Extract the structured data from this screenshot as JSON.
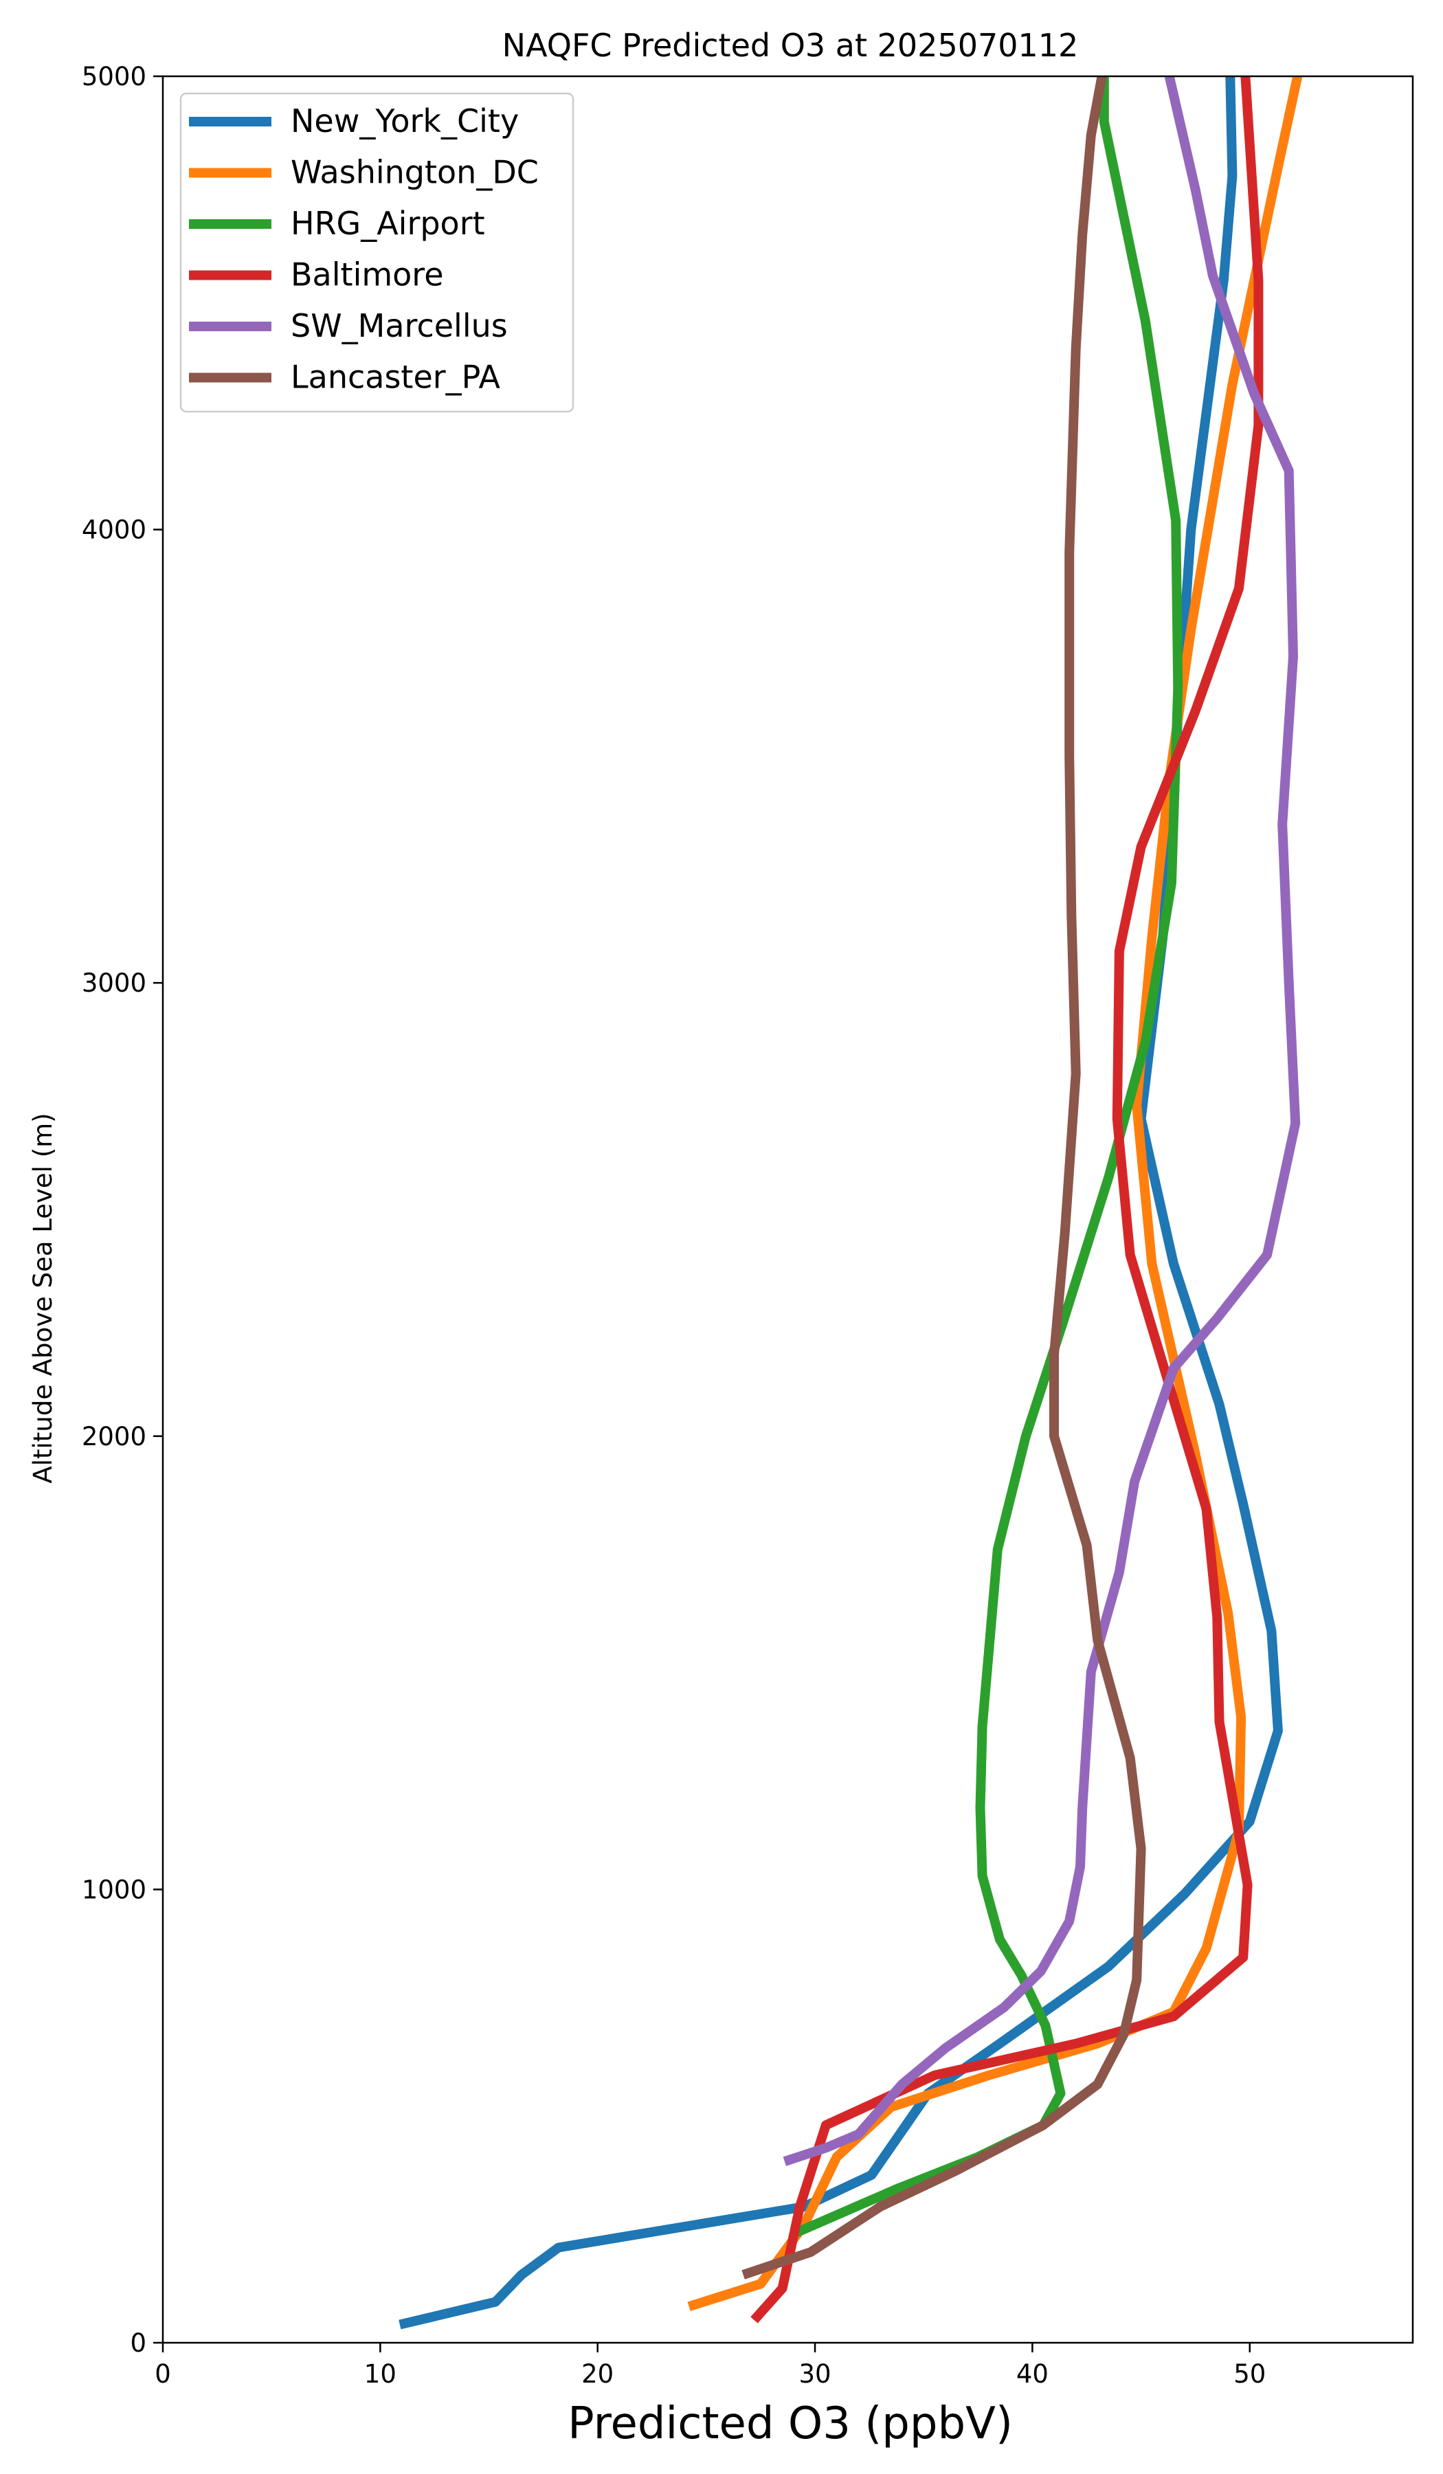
{
  "chart_data": {
    "type": "line",
    "title": "NAQFC Predicted O3 at 2025070112",
    "xlabel": "Predicted O3 (ppbV)",
    "ylabel": "Altitude Above Sea Level (m)",
    "xlim": [
      0,
      57.5
    ],
    "ylim": [
      0,
      5000
    ],
    "xticks": [
      0,
      10,
      20,
      30,
      40,
      50
    ],
    "yticks": [
      0,
      1000,
      2000,
      3000,
      4000,
      5000
    ],
    "legend_position": "top-left",
    "grid": false,
    "series": [
      {
        "name": "New_York_City",
        "color": "#1f77b4",
        "points": [
          [
            10.9,
            40
          ],
          [
            15.3,
            90
          ],
          [
            16.5,
            150
          ],
          [
            18.2,
            210
          ],
          [
            29.5,
            300
          ],
          [
            32.6,
            370
          ],
          [
            35.2,
            550
          ],
          [
            38.5,
            660
          ],
          [
            43.5,
            830
          ],
          [
            47.0,
            990
          ],
          [
            50.0,
            1150
          ],
          [
            51.3,
            1350
          ],
          [
            51.0,
            1570
          ],
          [
            49.7,
            1850
          ],
          [
            48.6,
            2070
          ],
          [
            46.5,
            2380
          ],
          [
            45.0,
            2700
          ],
          [
            46.0,
            3100
          ],
          [
            47.3,
            4000
          ],
          [
            48.8,
            4550
          ],
          [
            49.2,
            4780
          ],
          [
            49.1,
            5000
          ]
        ]
      },
      {
        "name": "Washington_DC",
        "color": "#ff7f0e",
        "points": [
          [
            24.2,
            80
          ],
          [
            27.5,
            130
          ],
          [
            29.5,
            260
          ],
          [
            31.0,
            410
          ],
          [
            33.5,
            520
          ],
          [
            38.0,
            590
          ],
          [
            43.0,
            660
          ],
          [
            46.5,
            730
          ],
          [
            48.0,
            870
          ],
          [
            49.5,
            1130
          ],
          [
            49.6,
            1380
          ],
          [
            49.0,
            1610
          ],
          [
            47.5,
            1960
          ],
          [
            45.5,
            2380
          ],
          [
            44.8,
            2730
          ],
          [
            45.5,
            3100
          ],
          [
            46.3,
            3450
          ],
          [
            47.3,
            3780
          ],
          [
            49.2,
            4320
          ],
          [
            51.3,
            4800
          ],
          [
            52.2,
            5000
          ]
        ]
      },
      {
        "name": "HRG_Airport",
        "color": "#2ca02c",
        "points": [
          [
            29.0,
            240
          ],
          [
            33.8,
            340
          ],
          [
            37.5,
            410
          ],
          [
            40.5,
            480
          ],
          [
            41.3,
            550
          ],
          [
            40.6,
            700
          ],
          [
            39.5,
            810
          ],
          [
            38.5,
            890
          ],
          [
            37.7,
            1030
          ],
          [
            37.6,
            1180
          ],
          [
            37.7,
            1360
          ],
          [
            38.4,
            1750
          ],
          [
            39.7,
            2000
          ],
          [
            41.4,
            2250
          ],
          [
            43.5,
            2570
          ],
          [
            45.2,
            2870
          ],
          [
            46.4,
            3220
          ],
          [
            46.7,
            3650
          ],
          [
            46.6,
            4020
          ],
          [
            45.2,
            4460
          ],
          [
            43.3,
            4900
          ],
          [
            43.3,
            5000
          ]
        ]
      },
      {
        "name": "Baltimore",
        "color": "#d62728",
        "points": [
          [
            27.2,
            50
          ],
          [
            28.5,
            120
          ],
          [
            29.3,
            300
          ],
          [
            30.5,
            480
          ],
          [
            35.5,
            590
          ],
          [
            42.0,
            660
          ],
          [
            46.5,
            720
          ],
          [
            49.7,
            850
          ],
          [
            49.9,
            1010
          ],
          [
            48.6,
            1370
          ],
          [
            48.5,
            1600
          ],
          [
            48.0,
            1840
          ],
          [
            44.5,
            2400
          ],
          [
            43.9,
            2700
          ],
          [
            44.0,
            3070
          ],
          [
            45.0,
            3300
          ],
          [
            47.5,
            3600
          ],
          [
            49.5,
            3870
          ],
          [
            50.4,
            4230
          ],
          [
            50.4,
            4550
          ],
          [
            49.8,
            5000
          ]
        ]
      },
      {
        "name": "SW_Marcellus",
        "color": "#9467bd",
        "points": [
          [
            28.6,
            400
          ],
          [
            30.5,
            430
          ],
          [
            32.0,
            460
          ],
          [
            34.0,
            570
          ],
          [
            36.0,
            650
          ],
          [
            38.7,
            740
          ],
          [
            40.4,
            820
          ],
          [
            41.7,
            930
          ],
          [
            42.2,
            1050
          ],
          [
            42.3,
            1180
          ],
          [
            42.7,
            1480
          ],
          [
            44.0,
            1700
          ],
          [
            44.7,
            1900
          ],
          [
            46.5,
            2150
          ],
          [
            48.5,
            2260
          ],
          [
            50.8,
            2400
          ],
          [
            52.1,
            2690
          ],
          [
            51.8,
            3000
          ],
          [
            51.5,
            3350
          ],
          [
            52.0,
            3720
          ],
          [
            51.8,
            4130
          ],
          [
            50.2,
            4300
          ],
          [
            48.3,
            4560
          ],
          [
            47.5,
            4750
          ],
          [
            46.3,
            5000
          ]
        ]
      },
      {
        "name": "Lancaster_PA",
        "color": "#8c564b",
        "points": [
          [
            26.7,
            150
          ],
          [
            29.8,
            200
          ],
          [
            33.0,
            300
          ],
          [
            36.5,
            380
          ],
          [
            40.5,
            480
          ],
          [
            43.0,
            570
          ],
          [
            44.2,
            680
          ],
          [
            44.8,
            800
          ],
          [
            45.0,
            1090
          ],
          [
            44.5,
            1290
          ],
          [
            43.0,
            1550
          ],
          [
            42.5,
            1760
          ],
          [
            41.0,
            2000
          ],
          [
            41.0,
            2180
          ],
          [
            41.5,
            2450
          ],
          [
            42.0,
            2800
          ],
          [
            41.8,
            3150
          ],
          [
            41.7,
            3500
          ],
          [
            41.7,
            3950
          ],
          [
            42.0,
            4400
          ],
          [
            42.3,
            4650
          ],
          [
            42.7,
            4870
          ],
          [
            43.2,
            5000
          ]
        ]
      }
    ]
  }
}
